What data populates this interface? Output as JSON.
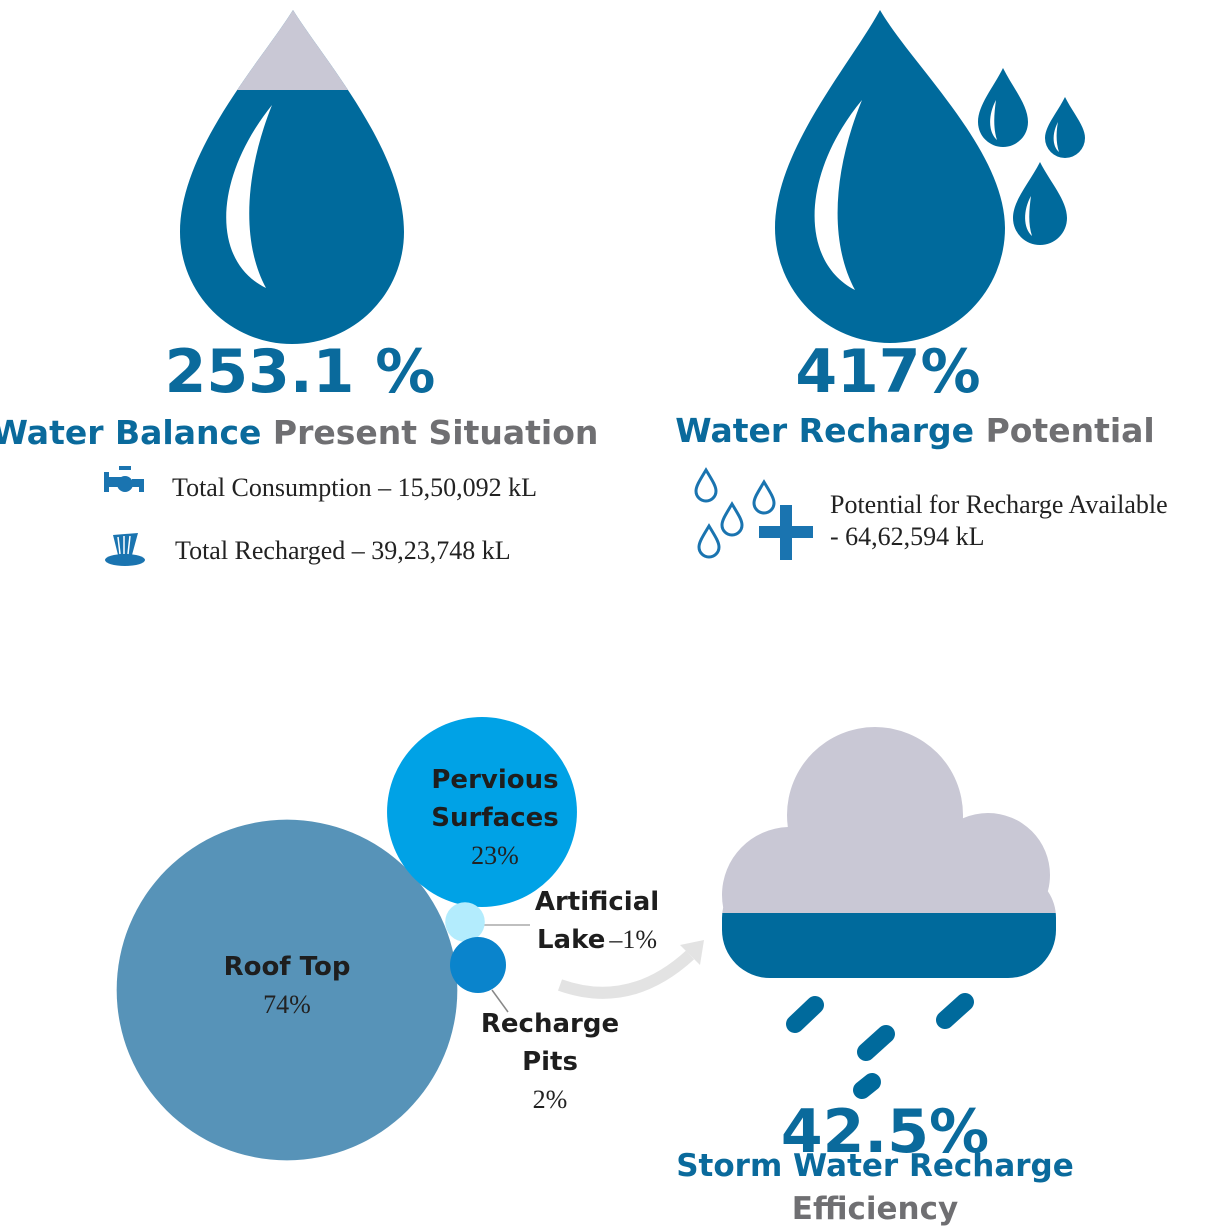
{
  "balance": {
    "percent": "253.1 %",
    "title_strong": "Water Balance",
    "title_rest": "Present Situation",
    "items": [
      {
        "text": "Total Consumption – 15,50,092 kL"
      },
      {
        "text": "Total Recharged – 39,23,748 kL"
      }
    ]
  },
  "recharge": {
    "percent": "417%",
    "title_strong": "Water Recharge",
    "title_rest": "Potential",
    "lines": [
      "Potential for Recharge Available",
      "- 64,62,594 kL"
    ]
  },
  "bubbles": [
    {
      "lines": [
        "Roof Top"
      ],
      "value": 74,
      "value_label": "74%"
    },
    {
      "lines": [
        "Pervious",
        "Surfaces"
      ],
      "value": 23,
      "value_label": "23%"
    },
    {
      "lines": [
        "Artificial",
        "Lake"
      ],
      "separator": "–",
      "value": 1,
      "value_label": "1%"
    },
    {
      "lines": [
        "Recharge",
        "Pits"
      ],
      "value": 2,
      "value_label": "2%"
    }
  ],
  "storm": {
    "percent": "42.5%",
    "title_strong": "Storm Water Recharge",
    "title_rest": "Efficiency"
  }
}
